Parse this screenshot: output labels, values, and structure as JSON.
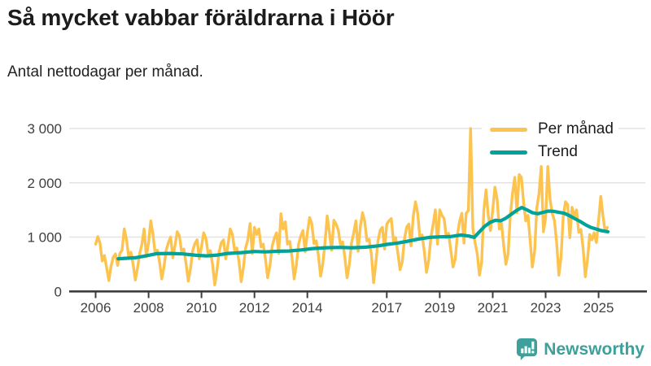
{
  "header": {
    "title": "Så mycket vabbar föräldrarna i Höör",
    "subtitle": "Antal nettodagar per månad."
  },
  "footer": {
    "brand": "Newsworthy",
    "brand_color": "#3EA09B",
    "logo_icon": "bar-chart-speech-bubble-icon"
  },
  "chart_data": {
    "type": "line",
    "title": "Så mycket vabbar föräldrarna i Höör",
    "subtitle": "Antal nettodagar per månad.",
    "xlabel": "",
    "ylabel": "",
    "grid": "horizontal",
    "legend_position": "top-right",
    "style": {
      "background": "#ffffff",
      "grid_color": "#e3e3e3",
      "axis_color": "#3d3d3d",
      "tick_label_color": "#3f3f3f",
      "per_manad_color": "#FCC34F",
      "trend_color": "#00A39A"
    },
    "x_axis": {
      "min": 2005.75,
      "max": 2026,
      "ticks": [
        2006,
        2008,
        2010,
        2012,
        2014,
        2017,
        2019,
        2021,
        2023,
        2025
      ]
    },
    "y_axis": {
      "min": 0,
      "max": 3100,
      "ticks": [
        {
          "value": 0,
          "label": "0"
        },
        {
          "value": 1000,
          "label": "1 000"
        },
        {
          "value": 2000,
          "label": "2 000"
        },
        {
          "value": 3000,
          "label": "3 000"
        }
      ]
    },
    "series": [
      {
        "name": "Per månad",
        "color": "#FCC34F",
        "start_year": 2006,
        "start_month": 1,
        "monthly_values": [
          870,
          1010,
          890,
          560,
          660,
          430,
          200,
          470,
          630,
          690,
          480,
          700,
          760,
          1150,
          950,
          640,
          720,
          500,
          210,
          430,
          700,
          870,
          1150,
          640,
          900,
          1300,
          1050,
          700,
          760,
          540,
          230,
          450,
          760,
          900,
          1000,
          620,
          850,
          1100,
          1020,
          720,
          780,
          520,
          190,
          420,
          750,
          880,
          950,
          600,
          820,
          1080,
          980,
          700,
          750,
          500,
          120,
          390,
          730,
          900,
          950,
          600,
          850,
          1150,
          1050,
          760,
          800,
          550,
          180,
          440,
          800,
          950,
          1250,
          700,
          1180,
          1050,
          1150,
          820,
          870,
          600,
          250,
          470,
          830,
          980,
          1080,
          700,
          1430,
          1150,
          1280,
          870,
          920,
          630,
          230,
          490,
          870,
          1020,
          1120,
          730,
          1080,
          1360,
          1240,
          880,
          930,
          660,
          280,
          510,
          900,
          1390,
          1080,
          760,
          1310,
          1240,
          1130,
          860,
          910,
          630,
          250,
          490,
          890,
          1080,
          1300,
          740,
          1190,
          1450,
          1290,
          930,
          960,
          680,
          160,
          510,
          930,
          1130,
          1180,
          780,
          1240,
          1300,
          1340,
          930,
          990,
          710,
          400,
          540,
          960,
          1180,
          1240,
          840,
          1390,
          1650,
          1440,
          990,
          1040,
          740,
          350,
          570,
          990,
          1240,
          1500,
          870,
          1500,
          1400,
          1340,
          990,
          1070,
          770,
          450,
          590,
          1040,
          1290,
          1440,
          890,
          1440,
          1490,
          3000,
          1150,
          900,
          690,
          300,
          540,
          1500,
          1870,
          1400,
          1120,
          1500,
          1920,
          1700,
          1150,
          1250,
          840,
          500,
          690,
          1390,
          1800,
          2100,
          1450,
          2150,
          2100,
          1650,
          1300,
          1400,
          940,
          450,
          740,
          1540,
          1800,
          2300,
          1100,
          1350,
          2300,
          1700,
          1440,
          1300,
          890,
          300,
          640,
          1390,
          1650,
          1600,
          990,
          1550,
          1380,
          1500,
          1090,
          1140,
          790,
          270,
          590,
          1050,
          950,
          1080,
          900,
          1310,
          1750,
          1390,
          1100,
          1180
        ]
      },
      {
        "name": "Trend",
        "color": "#00A39A",
        "points": [
          [
            2006.85,
            600
          ],
          [
            2007.0,
            605
          ],
          [
            2007.5,
            620
          ],
          [
            2008.0,
            665
          ],
          [
            2008.3,
            695
          ],
          [
            2008.8,
            700
          ],
          [
            2009.3,
            690
          ],
          [
            2009.8,
            665
          ],
          [
            2010.2,
            655
          ],
          [
            2010.6,
            670
          ],
          [
            2011.0,
            700
          ],
          [
            2011.5,
            715
          ],
          [
            2012.0,
            735
          ],
          [
            2012.4,
            728
          ],
          [
            2012.9,
            740
          ],
          [
            2013.3,
            745
          ],
          [
            2013.8,
            765
          ],
          [
            2014.2,
            790
          ],
          [
            2014.7,
            805
          ],
          [
            2015.2,
            810
          ],
          [
            2015.7,
            805
          ],
          [
            2016.2,
            815
          ],
          [
            2016.7,
            840
          ],
          [
            2017.0,
            865
          ],
          [
            2017.4,
            890
          ],
          [
            2017.8,
            925
          ],
          [
            2018.2,
            965
          ],
          [
            2018.6,
            995
          ],
          [
            2019.0,
            1005
          ],
          [
            2019.4,
            1010
          ],
          [
            2019.8,
            1040
          ],
          [
            2020.1,
            1020
          ],
          [
            2020.3,
            995
          ],
          [
            2020.5,
            1100
          ],
          [
            2020.7,
            1200
          ],
          [
            2020.9,
            1270
          ],
          [
            2021.1,
            1310
          ],
          [
            2021.3,
            1300
          ],
          [
            2021.5,
            1350
          ],
          [
            2021.7,
            1420
          ],
          [
            2021.9,
            1490
          ],
          [
            2022.1,
            1545
          ],
          [
            2022.3,
            1500
          ],
          [
            2022.5,
            1450
          ],
          [
            2022.7,
            1430
          ],
          [
            2022.9,
            1455
          ],
          [
            2023.1,
            1480
          ],
          [
            2023.3,
            1475
          ],
          [
            2023.5,
            1455
          ],
          [
            2023.7,
            1440
          ],
          [
            2023.9,
            1395
          ],
          [
            2024.1,
            1340
          ],
          [
            2024.3,
            1290
          ],
          [
            2024.5,
            1230
          ],
          [
            2024.7,
            1180
          ],
          [
            2024.9,
            1150
          ],
          [
            2025.1,
            1120
          ],
          [
            2025.35,
            1100
          ]
        ]
      }
    ]
  }
}
